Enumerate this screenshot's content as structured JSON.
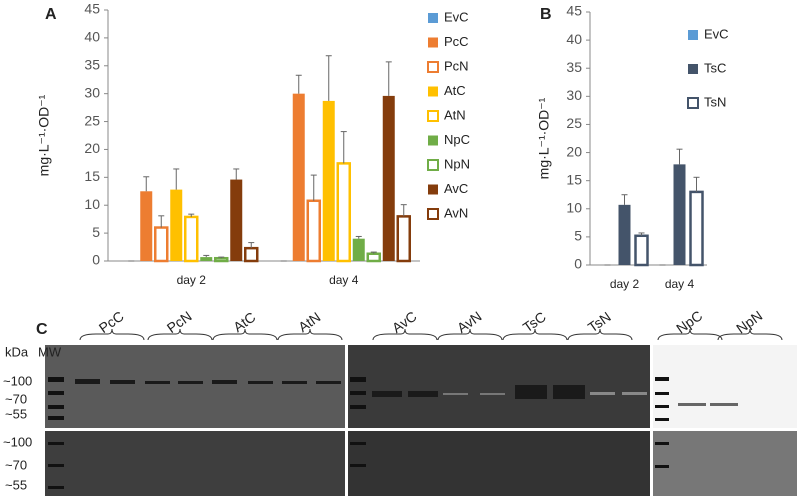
{
  "chart_data": [
    {
      "type": "bar",
      "panel": "A",
      "y_label": "mg·L⁻¹·OD⁻¹",
      "categories": [
        "day 2",
        "day 4"
      ],
      "ylim": [
        0,
        45
      ],
      "yticks": [
        0,
        5,
        10,
        15,
        20,
        25,
        30,
        35,
        40,
        45
      ],
      "legend": "right",
      "series": [
        {
          "name": "EvC",
          "color": "#5b9bd5",
          "filled": true,
          "values": [
            0,
            0
          ],
          "errors": [
            0,
            0
          ]
        },
        {
          "name": "PcC",
          "color": "#ed7d31",
          "filled": true,
          "values": [
            12.5,
            30
          ],
          "errors": [
            2.6,
            3.3
          ]
        },
        {
          "name": "PcN",
          "color": "#ed7d31",
          "filled": false,
          "values": [
            6,
            10.8
          ],
          "errors": [
            2.1,
            4.6
          ]
        },
        {
          "name": "AtC",
          "color": "#ffc000",
          "filled": true,
          "values": [
            12.8,
            28.7
          ],
          "errors": [
            3.7,
            8.1
          ]
        },
        {
          "name": "AtN",
          "color": "#ffc000",
          "filled": false,
          "values": [
            7.9,
            17.5
          ],
          "errors": [
            0.5,
            5.7
          ]
        },
        {
          "name": "NpC",
          "color": "#70ad47",
          "filled": true,
          "values": [
            0.7,
            4
          ],
          "errors": [
            0.3,
            0.4
          ]
        },
        {
          "name": "NpN",
          "color": "#70ad47",
          "filled": false,
          "values": [
            0.5,
            1.3
          ],
          "errors": [
            0.2,
            0.3
          ]
        },
        {
          "name": "AvC",
          "color": "#843c0c",
          "filled": true,
          "values": [
            14.6,
            29.6
          ],
          "errors": [
            1.9,
            6.1
          ]
        },
        {
          "name": "AvN",
          "color": "#843c0c",
          "filled": false,
          "values": [
            2.3,
            8
          ],
          "errors": [
            1,
            2.1
          ]
        }
      ]
    },
    {
      "type": "bar",
      "panel": "B",
      "y_label": "mg·L⁻¹·OD⁻¹",
      "categories": [
        "day 2",
        "day 4"
      ],
      "ylim": [
        0,
        45
      ],
      "yticks": [
        0,
        5,
        10,
        15,
        20,
        25,
        30,
        35,
        40,
        45
      ],
      "legend": "right",
      "series": [
        {
          "name": "EvC",
          "color": "#5b9bd5",
          "filled": true,
          "values": [
            0,
            0
          ],
          "errors": [
            0,
            0
          ]
        },
        {
          "name": "TsC",
          "color": "#44546a",
          "filled": true,
          "values": [
            10.7,
            17.9
          ],
          "errors": [
            1.8,
            2.7
          ]
        },
        {
          "name": "TsN",
          "color": "#44546a",
          "filled": false,
          "values": [
            5.2,
            13
          ],
          "errors": [
            0.5,
            2.6
          ]
        }
      ]
    }
  ],
  "panel_c": {
    "label": "C",
    "unit": "kDa",
    "ladder": "MW",
    "markers": [
      "~100",
      "~70",
      "~55"
    ],
    "lanes": [
      "PcC",
      "PcN",
      "AtC",
      "AtN",
      "AvC",
      "AvN",
      "TsC",
      "TsN",
      "NpC",
      "NpN"
    ]
  }
}
